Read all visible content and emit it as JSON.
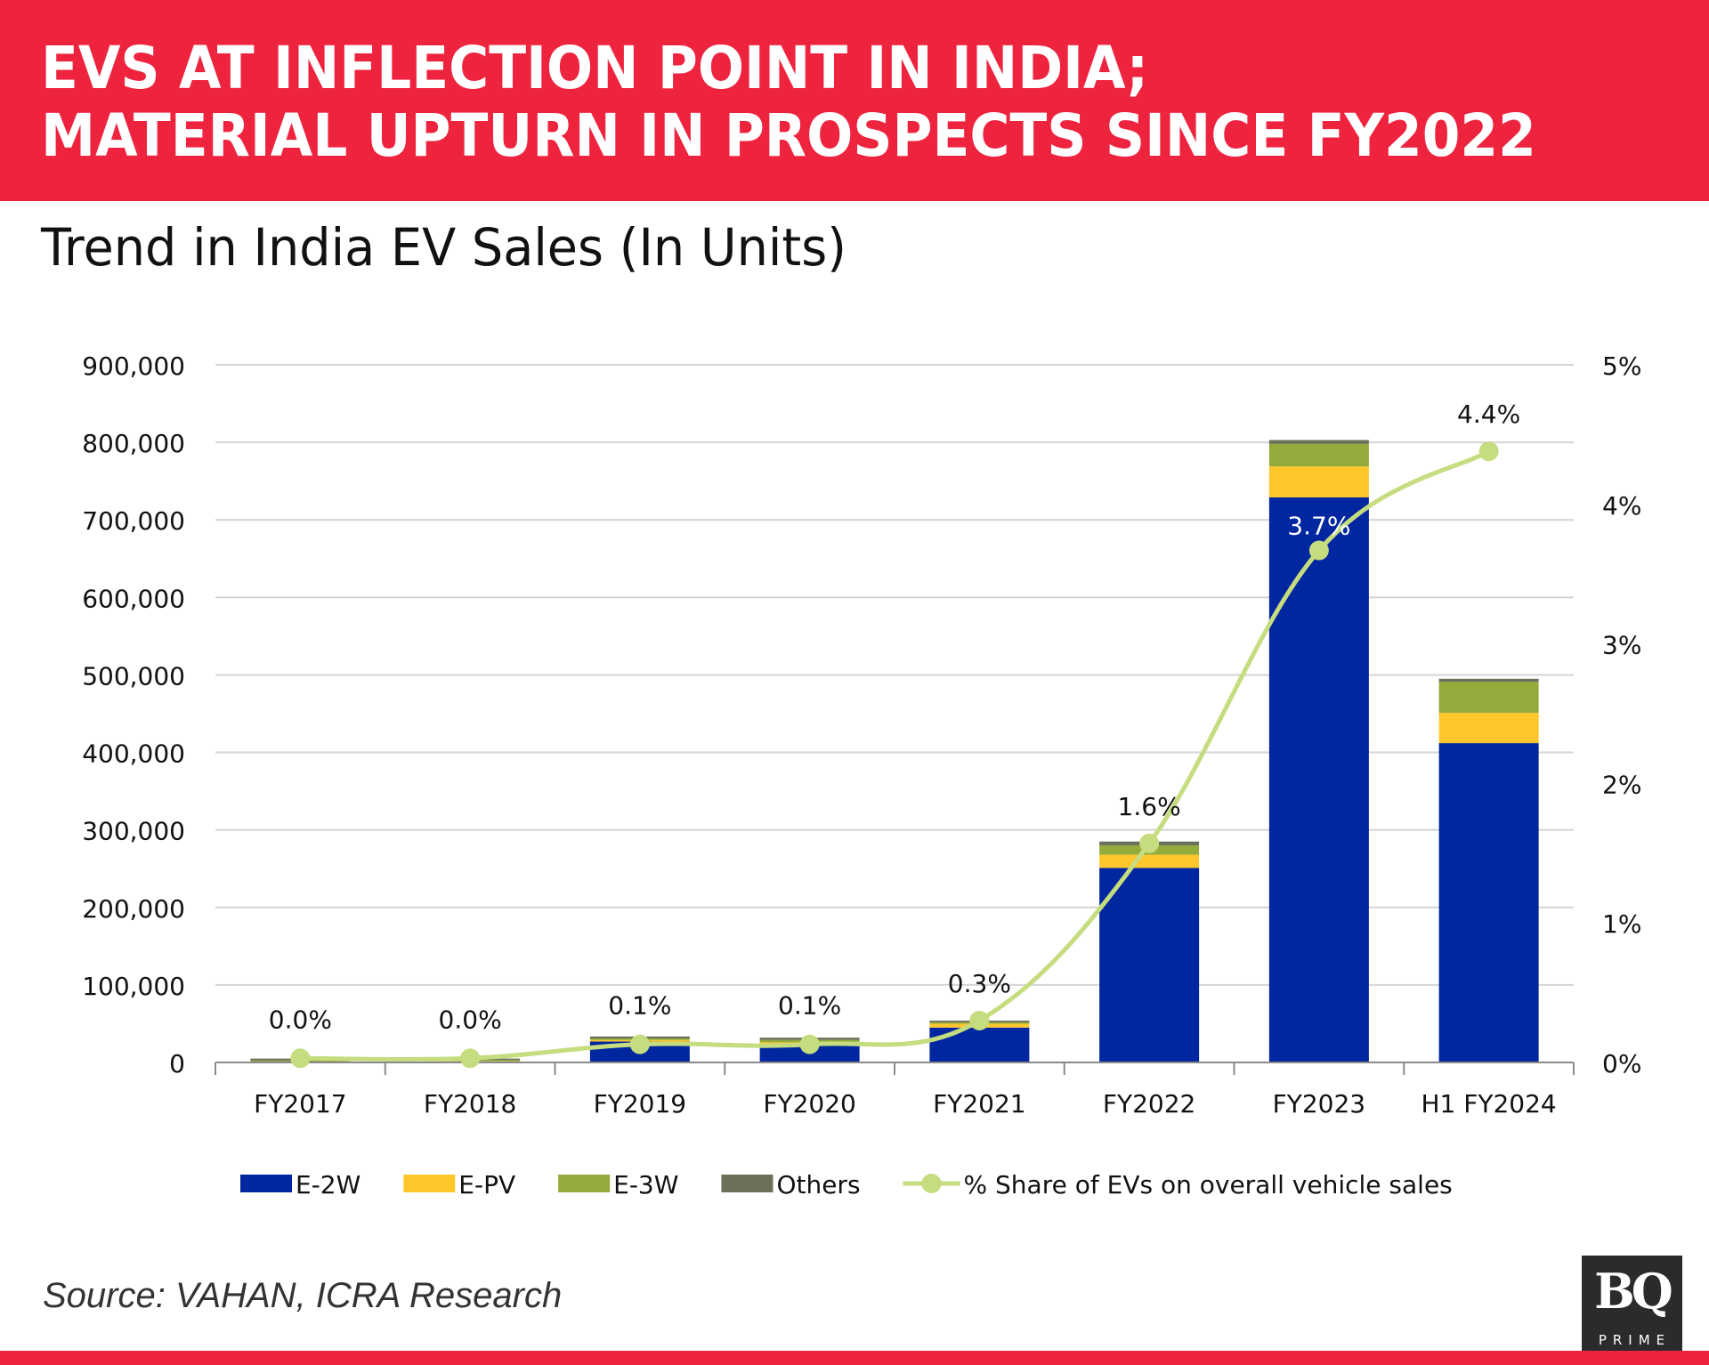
{
  "header": {
    "title_line1": "EVS AT INFLECTION POINT IN INDIA;",
    "title_line2": "MATERIAL UPTURN IN PROSPECTS SINCE FY2022",
    "subtitle": "Trend in India EV Sales (In Units)"
  },
  "footer": {
    "source": "Source: VAHAN, ICRA Research",
    "logo_main": "BQ",
    "logo_sub": "PRIME"
  },
  "colors": {
    "banner": "#ee243f",
    "E-2W": "#0026a0",
    "E-PV": "#ffc72c",
    "E-3W": "#92ab3a",
    "Others": "#6b7158",
    "share_line": "#c5dc7f"
  },
  "chart_data": {
    "type": "bar",
    "stacked": true,
    "title": "Trend in India EV Sales (In Units)",
    "xlabel": "",
    "ylabel": "",
    "categories": [
      "FY2017",
      "FY2018",
      "FY2019",
      "FY2020",
      "FY2021",
      "FY2022",
      "FY2023",
      "H1 FY2024"
    ],
    "series": [
      {
        "name": "E-2W",
        "type": "bar",
        "axis": "left",
        "values": [
          500,
          1000,
          27000,
          24000,
          45000,
          251000,
          729000,
          412000
        ]
      },
      {
        "name": "E-PV",
        "type": "bar",
        "axis": "left",
        "values": [
          500,
          500,
          2000,
          2000,
          5000,
          17000,
          40000,
          39000
        ]
      },
      {
        "name": "E-3W",
        "type": "bar",
        "axis": "left",
        "values": [
          1500,
          1500,
          2000,
          3000,
          2000,
          12000,
          29000,
          40000
        ]
      },
      {
        "name": "Others",
        "type": "bar",
        "axis": "left",
        "values": [
          2500,
          2000,
          2500,
          3000,
          2000,
          5000,
          5000,
          4000
        ]
      },
      {
        "name": "% Share of EVs on overall vehicle sales",
        "type": "line",
        "axis": "right",
        "values": [
          0.03,
          0.03,
          0.13,
          0.13,
          0.3,
          1.57,
          3.67,
          4.38
        ],
        "labels": [
          "0.0%",
          "0.0%",
          "0.1%",
          "0.1%",
          "0.3%",
          "1.6%",
          "3.7%",
          "4.4%"
        ]
      }
    ],
    "y_left": {
      "ylim": [
        0,
        900000
      ],
      "ticks": [
        0,
        100000,
        200000,
        300000,
        400000,
        500000,
        600000,
        700000,
        800000,
        900000
      ],
      "tick_labels": [
        "0",
        "100,000",
        "200,000",
        "300,000",
        "400,000",
        "500,000",
        "600,000",
        "700,000",
        "800,000",
        "900,000"
      ]
    },
    "y_right": {
      "ylim": [
        0,
        5
      ],
      "ticks": [
        0,
        1,
        2,
        3,
        4,
        5
      ],
      "tick_labels": [
        "0%",
        "1%",
        "2%",
        "3%",
        "4%",
        "5%"
      ]
    },
    "grid": true,
    "legend": {
      "placement": "bottom",
      "entries": [
        "E-2W",
        "E-PV",
        "E-3W",
        "Others",
        "% Share of EVs on overall vehicle sales"
      ]
    }
  }
}
